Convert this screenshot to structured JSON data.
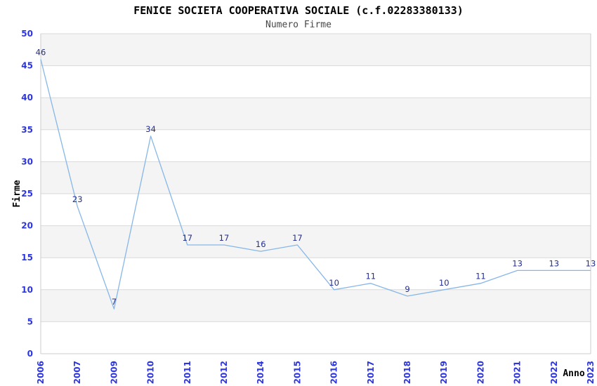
{
  "chart_data": {
    "type": "line",
    "title": "FENICE SOCIETA COOPERATIVA SOCIALE (c.f.02283380133)",
    "subtitle": "Numero Firme",
    "xlabel": "Anno",
    "ylabel": "Firme",
    "categories": [
      "2006",
      "2007",
      "2009",
      "2010",
      "2011",
      "2012",
      "2014",
      "2015",
      "2016",
      "2017",
      "2018",
      "2019",
      "2020",
      "2021",
      "2022",
      "2023"
    ],
    "values": [
      46,
      23,
      7,
      34,
      17,
      17,
      16,
      17,
      10,
      11,
      9,
      10,
      11,
      13,
      13,
      13
    ],
    "ylim": [
      0,
      50
    ],
    "ytick_step": 5,
    "grid": true,
    "legend_position": "none",
    "data_labels_visible": true,
    "colors": {
      "band_fill": "#f4f4f4",
      "gridline": "#d9d9d9",
      "axis_frame": "#cccccc",
      "series_line": "#86b7e8",
      "tick_label": "#2d35dd",
      "data_label": "#232e91",
      "title": "#000000",
      "subtitle": "#474747",
      "axis_title": "#000000"
    }
  }
}
